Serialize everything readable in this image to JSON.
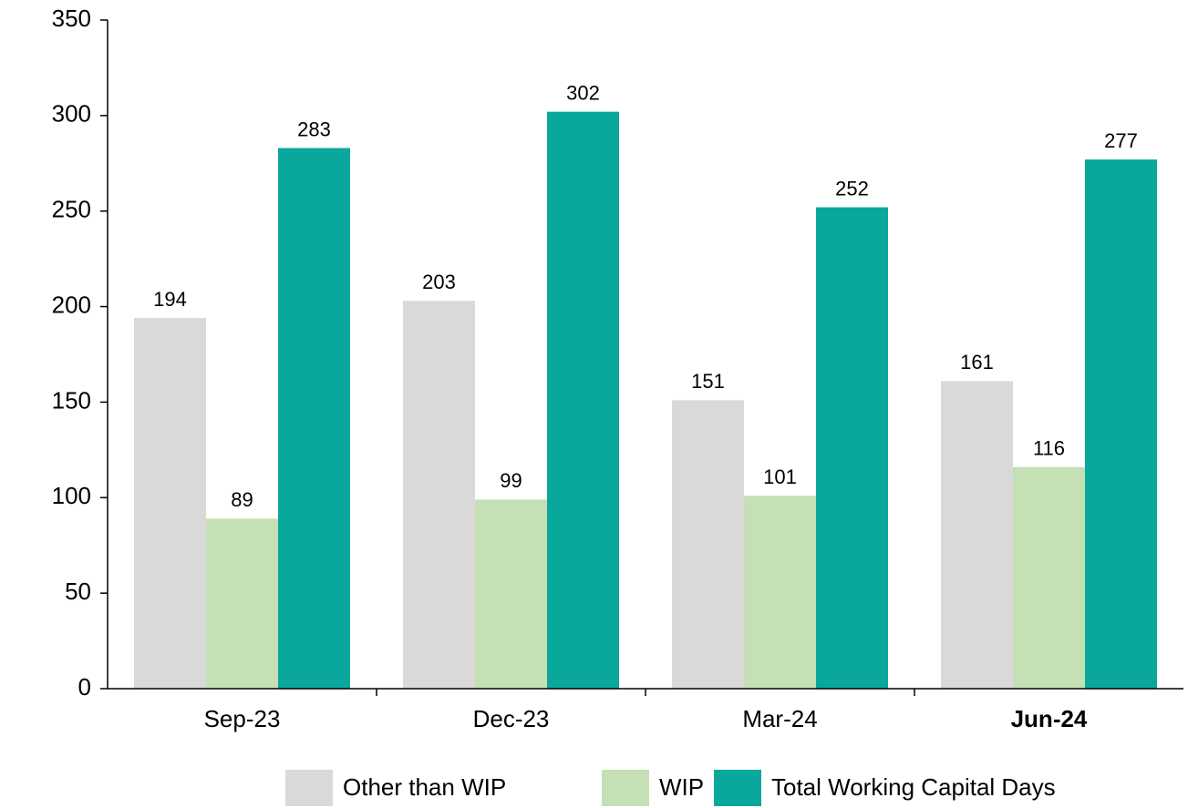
{
  "chart_data": {
    "type": "bar",
    "categories": [
      "Sep-23",
      "Dec-23",
      "Mar-24",
      "Jun-24"
    ],
    "bold_category_index": 3,
    "series": [
      {
        "name": "Other than WIP",
        "color": "#d9d9d9",
        "values": [
          194,
          203,
          151,
          161
        ]
      },
      {
        "name": "WIP",
        "color": "#c5e0b4",
        "values": [
          89,
          99,
          101,
          116
        ]
      },
      {
        "name": "Total Working Capital Days",
        "color": "#0aa89c",
        "values": [
          283,
          302,
          252,
          277
        ]
      }
    ],
    "ylim": [
      0,
      350
    ],
    "yticks": [
      0,
      50,
      100,
      150,
      200,
      250,
      300,
      350
    ],
    "grid": false,
    "legend": "bottom"
  }
}
